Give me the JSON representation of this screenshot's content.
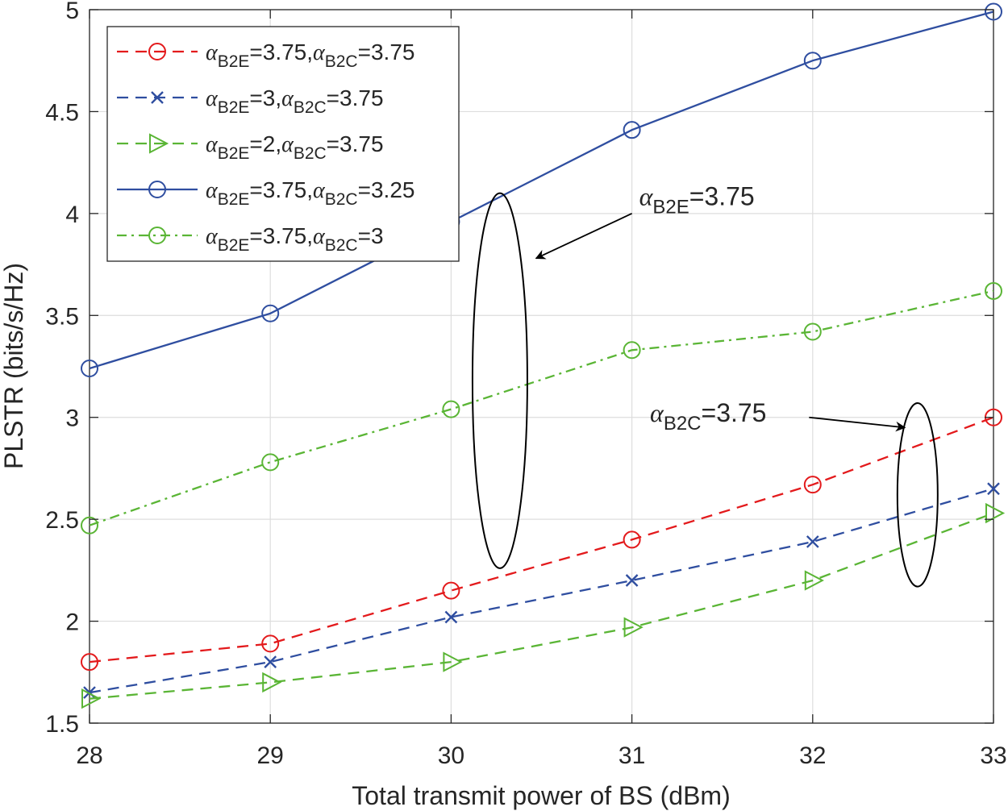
{
  "chart_data": {
    "type": "line",
    "xlabel": "Total transmit power of BS (dBm)",
    "ylabel": "PLSTR (bits/s/Hz)",
    "xlim": [
      28,
      33
    ],
    "ylim": [
      1.5,
      5
    ],
    "x_ticks": [
      "28",
      "29",
      "30",
      "31",
      "32",
      "33"
    ],
    "y_ticks": [
      "1.5",
      "2",
      "2.5",
      "3",
      "3.5",
      "4",
      "4.5",
      "5"
    ],
    "grid": true,
    "legend_position": "top-left",
    "x": [
      28,
      29,
      30,
      31,
      32,
      33
    ],
    "series": [
      {
        "name": "αB2E=3.75,αB2C=3.75",
        "name_parts": [
          "α",
          "B2E",
          "=3.75,",
          "α",
          "B2C",
          "=3.75"
        ],
        "color": "#e31a1c",
        "dash": "dashed",
        "marker": "circle",
        "values": [
          1.8,
          1.89,
          2.15,
          2.4,
          2.67,
          3.0
        ]
      },
      {
        "name": "αB2E=3,αB2C=3.75",
        "name_parts": [
          "α",
          "B2E",
          "=3,",
          "α",
          "B2C",
          "=3.75"
        ],
        "color": "#2f4ea0",
        "dash": "dashed",
        "marker": "x",
        "values": [
          1.65,
          1.8,
          2.02,
          2.2,
          2.39,
          2.65
        ]
      },
      {
        "name": "αB2E=2,αB2C=3.75",
        "name_parts": [
          "α",
          "B2E",
          "=2,",
          "α",
          "B2C",
          "=3.75"
        ],
        "color": "#5ab535",
        "dash": "dashed",
        "marker": "triangle-right",
        "values": [
          1.62,
          1.7,
          1.8,
          1.97,
          2.2,
          2.53
        ]
      },
      {
        "name": "αB2E=3.75,αB2C=3.25",
        "name_parts": [
          "α",
          "B2E",
          "=3.75,",
          "α",
          "B2C",
          "=3.25"
        ],
        "color": "#2f4ea0",
        "dash": "solid",
        "marker": "circle",
        "values": [
          3.24,
          3.51,
          3.96,
          4.41,
          4.75,
          4.99
        ]
      },
      {
        "name": "αB2E=3.75,αB2C=3",
        "name_parts": [
          "α",
          "B2E",
          "=3.75,",
          "α",
          "B2C",
          "=3"
        ],
        "color": "#5ab535",
        "dash": "dashdot",
        "marker": "circle",
        "values": [
          2.47,
          2.78,
          3.04,
          3.33,
          3.42,
          3.62
        ]
      }
    ],
    "annotations": [
      {
        "text": "αB2E=3.75",
        "sym": "α",
        "sub": "B2E",
        "rest": "=3.75",
        "ellipse_center": [
          30.27,
          3.18
        ],
        "ellipse_dy": 0.92,
        "arrow_to": [
          30.47,
          3.78
        ],
        "arrow_from": [
          31.0,
          4.0
        ]
      },
      {
        "text": "αB2C=3.75",
        "sym": "α",
        "sub": "B2C",
        "rest": "=3.75",
        "ellipse_center": [
          32.58,
          2.62
        ],
        "ellipse_dy": 0.45,
        "arrow_to": [
          32.51,
          2.95
        ],
        "arrow_from": [
          31.98,
          3.0
        ]
      }
    ]
  }
}
